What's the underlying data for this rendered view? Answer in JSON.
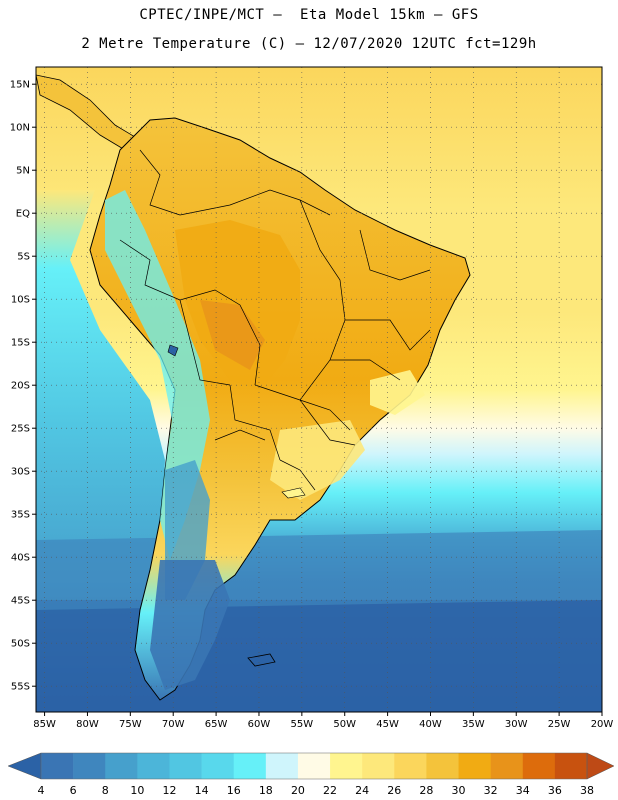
{
  "header": {
    "line1": "CPTEC/INPE/MCT —  Eta Model 15km — GFS",
    "line2": "2 Metre Temperature (C) — 12/07/2020 12UTC fct=129h"
  },
  "map": {
    "lat_ticks": [
      "15N",
      "10N",
      "5N",
      "EQ",
      "5S",
      "10S",
      "15S",
      "20S",
      "25S",
      "30S",
      "35S",
      "40S",
      "45S",
      "50S",
      "55S"
    ],
    "lon_ticks": [
      "85W",
      "80W",
      "75W",
      "70W",
      "65W",
      "60W",
      "55W",
      "50W",
      "45W",
      "40W",
      "35W",
      "30W",
      "25W",
      "20W"
    ],
    "lat_range": [
      17,
      -58
    ],
    "lon_range": [
      -86,
      -20
    ]
  },
  "colorbar": {
    "labels": [
      "4",
      "6",
      "8",
      "10",
      "12",
      "14",
      "16",
      "18",
      "20",
      "22",
      "24",
      "26",
      "28",
      "30",
      "32",
      "34",
      "36",
      "38"
    ],
    "under_color": "#2b62a6",
    "over_color": "#be4a16",
    "colors": [
      "#3a75b4",
      "#3f86be",
      "#46a0cc",
      "#4cb5d9",
      "#51c6e2",
      "#58d8ec",
      "#66f0f8",
      "#cff5fc",
      "#fffbe6",
      "#fff58f",
      "#fde87b",
      "#fbd65c",
      "#f4c33b",
      "#f1ab13",
      "#e8931a",
      "#dd6c0c",
      "#c8520f"
    ]
  }
}
